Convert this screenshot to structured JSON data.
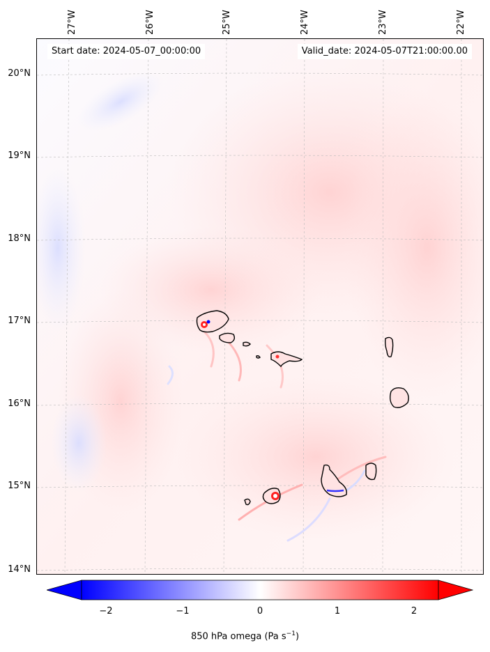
{
  "map": {
    "start_date": "Start date: 2024-05-07_00:00:00",
    "valid_date": "Valid_date: 2024-05-07T21:00:00.00",
    "longitude_labels": [
      "27°W",
      "26°W",
      "25°W",
      "24°W",
      "23°W",
      "22°W"
    ],
    "latitude_labels": [
      "20°N",
      "19°N",
      "18°N",
      "17°N",
      "16°N",
      "15°N",
      "14°N"
    ],
    "features": [
      "Santo Antão",
      "São Vicente",
      "Santa Luzia",
      "São Nicolau",
      "Sal",
      "Boa Vista",
      "Brava",
      "Fogo",
      "Santiago",
      "Maio"
    ]
  },
  "colorbar": {
    "ticks": [
      "−2",
      "−1",
      "0",
      "1",
      "2"
    ],
    "label_text": "850 hPa omega (Pa s",
    "label_sup": "−1",
    "label_close": ")",
    "negative_color": "#0000ff",
    "zero_color": "#ffffff",
    "positive_color": "#ff0000"
  }
}
